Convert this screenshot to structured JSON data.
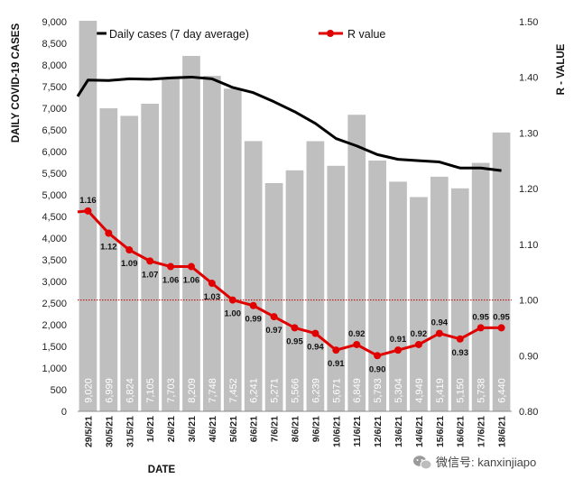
{
  "chart_data": {
    "type": "bar",
    "categories": [
      "29/5/21",
      "30/5/21",
      "31/5/21",
      "1/6/21",
      "2/6/21",
      "3/6/21",
      "4/6/21",
      "5/6/21",
      "6/6/21",
      "7/6/21",
      "8/6/21",
      "9/6/21",
      "10/6/21",
      "11/6/21",
      "12/6/21",
      "13/6/21",
      "14/6/21",
      "15/6/21",
      "16/6/21",
      "17/6/21",
      "18/6/21"
    ],
    "category_labels": [
      "29/5/21",
      "30/5/21",
      "31/5/21",
      "1/6/21",
      "2/6/21",
      "3/6/21",
      "4/6/21",
      "5/6/21",
      "6/6/21",
      "7/6/21",
      "8/6/21",
      "9/6/21",
      "10/6/21",
      "11/6/21",
      "12/6/21",
      "13/6/21",
      "14/6/21",
      "15/6/21",
      "16/6/21",
      "17/6/21",
      "18/6/21"
    ],
    "series": [
      {
        "name": "Daily cases",
        "type": "bar",
        "axis": "left",
        "color": "#bfbfbf",
        "values": [
          9020,
          6999,
          6824,
          7105,
          7703,
          8209,
          7748,
          7452,
          6241,
          5271,
          5566,
          6239,
          5671,
          6849,
          5793,
          5304,
          4949,
          5419,
          5150,
          5738,
          6440
        ],
        "labels": [
          "9,020",
          "6,999",
          "6,824",
          "7,105",
          "7,703",
          "8,209",
          "7,748",
          "7,452",
          "6,241",
          "5,271",
          "5,566",
          "6,239",
          "5,671",
          "6,849",
          "5,793",
          "5,304",
          "4,949",
          "5,419",
          "5,150",
          "5,738",
          "6,440"
        ]
      },
      {
        "name": "Daily cases (7 day average)",
        "type": "line",
        "axis": "left",
        "color": "#000000",
        "values": [
          7650,
          7640,
          7680,
          7670,
          7700,
          7720,
          7680,
          7480,
          7360,
          7150,
          6920,
          6650,
          6300,
          6130,
          5930,
          5820,
          5790,
          5760,
          5620,
          5620,
          5560
        ]
      },
      {
        "name": "R value",
        "type": "line",
        "axis": "right",
        "color": "#e00000",
        "values": [
          1.16,
          1.12,
          1.09,
          1.07,
          1.06,
          1.06,
          1.03,
          1.0,
          0.99,
          0.97,
          0.95,
          0.94,
          0.91,
          0.92,
          0.9,
          0.91,
          0.92,
          0.94,
          0.93,
          0.95,
          0.95
        ],
        "labels": [
          "1.16",
          "1.12",
          "1.09",
          "1.07",
          "1.06",
          "1.06",
          "1.03",
          "1.00",
          "0.99",
          "0.97",
          "0.95",
          "0.94",
          "0.91",
          "0.92",
          "0.90",
          "0.91",
          "0.92",
          "0.94",
          "0.93",
          "0.95",
          "0.95"
        ]
      }
    ],
    "left_axis": {
      "title": "DAILY COVID-19 CASES",
      "min": 0,
      "max": 9000,
      "step": 500,
      "ticks": [
        "0",
        "500",
        "1,000",
        "1,500",
        "2,000",
        "2,500",
        "3,000",
        "3,500",
        "4,000",
        "4,500",
        "5,000",
        "5,500",
        "6,000",
        "6,500",
        "7,000",
        "7,500",
        "8,000",
        "8,500",
        "9,000"
      ]
    },
    "right_axis": {
      "title": "R - VALUE",
      "min": 0.8,
      "max": 1.5,
      "step": 0.1,
      "ticks": [
        "0.80",
        "0.90",
        "1.00",
        "1.10",
        "1.20",
        "1.30",
        "1.40",
        "1.50"
      ]
    },
    "x_axis": {
      "title": "DATE"
    },
    "reference_line": {
      "axis": "right",
      "value": 1.0,
      "color": "#c00000",
      "style": "dotted"
    },
    "legend": {
      "position": "top",
      "items": [
        {
          "label": "Daily cases (7 day average)",
          "color": "#000000"
        },
        {
          "label": "R value",
          "color": "#e00000"
        }
      ]
    },
    "grid": false
  },
  "watermark": {
    "text": "微信号: kanxinjiapo",
    "icon": "wechat-icon"
  }
}
